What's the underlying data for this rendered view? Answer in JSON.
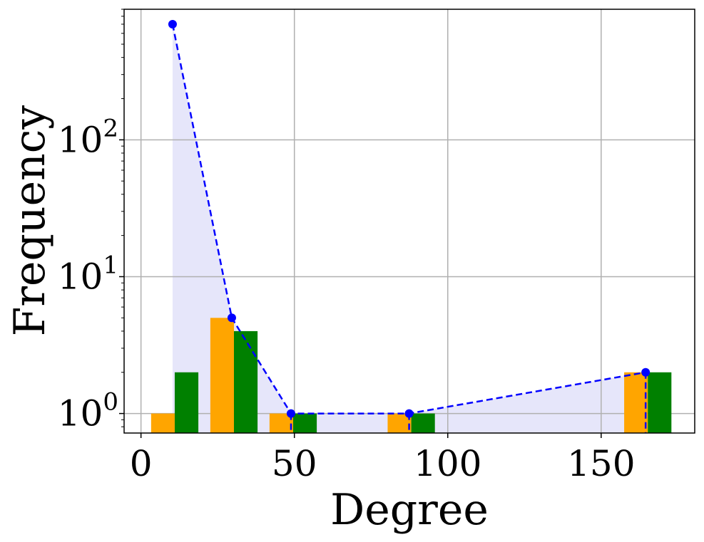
{
  "chart_data": {
    "type": "bar",
    "xlabel": "Degree",
    "ylabel": "Frequency",
    "xlim": [
      -5.5,
      180.5
    ],
    "ylim": [
      0.72,
      900
    ],
    "yscale": "log",
    "grid": true,
    "x_ticks": [
      {
        "value": 0,
        "label": "0"
      },
      {
        "value": 50,
        "label": "50"
      },
      {
        "value": 100,
        "label": "100"
      },
      {
        "value": 150,
        "label": "150"
      }
    ],
    "y_ticks": [
      {
        "value": 1,
        "label": "10",
        "exp": "0"
      },
      {
        "value": 10,
        "label": "10",
        "exp": "1"
      },
      {
        "value": 100,
        "label": "10",
        "exp": "2"
      }
    ],
    "bar_width": 7.7,
    "series": [
      {
        "color": "#ffa500",
        "bars": [
          {
            "x": 3.3,
            "value": 1
          },
          {
            "x": 22.6,
            "value": 5
          },
          {
            "x": 41.9,
            "value": 1
          },
          {
            "x": 80.4,
            "value": 1
          },
          {
            "x": 157.5,
            "value": 2
          }
        ]
      },
      {
        "color": "#008000",
        "bars": [
          {
            "x": 11.0,
            "value": 2
          },
          {
            "x": 30.3,
            "value": 4
          },
          {
            "x": 49.6,
            "value": 1
          },
          {
            "x": 88.1,
            "value": 1
          },
          {
            "x": 165.2,
            "value": 2
          }
        ]
      }
    ],
    "line": {
      "color": "#0000ff",
      "fill": "#e6e6fa",
      "style": "dashed",
      "points": [
        {
          "x": 10.3,
          "y": 700
        },
        {
          "x": 29.6,
          "y": 5
        },
        {
          "x": 48.9,
          "y": 1
        },
        {
          "x": 87.4,
          "y": 1
        },
        {
          "x": 164.5,
          "y": 2
        }
      ]
    }
  }
}
